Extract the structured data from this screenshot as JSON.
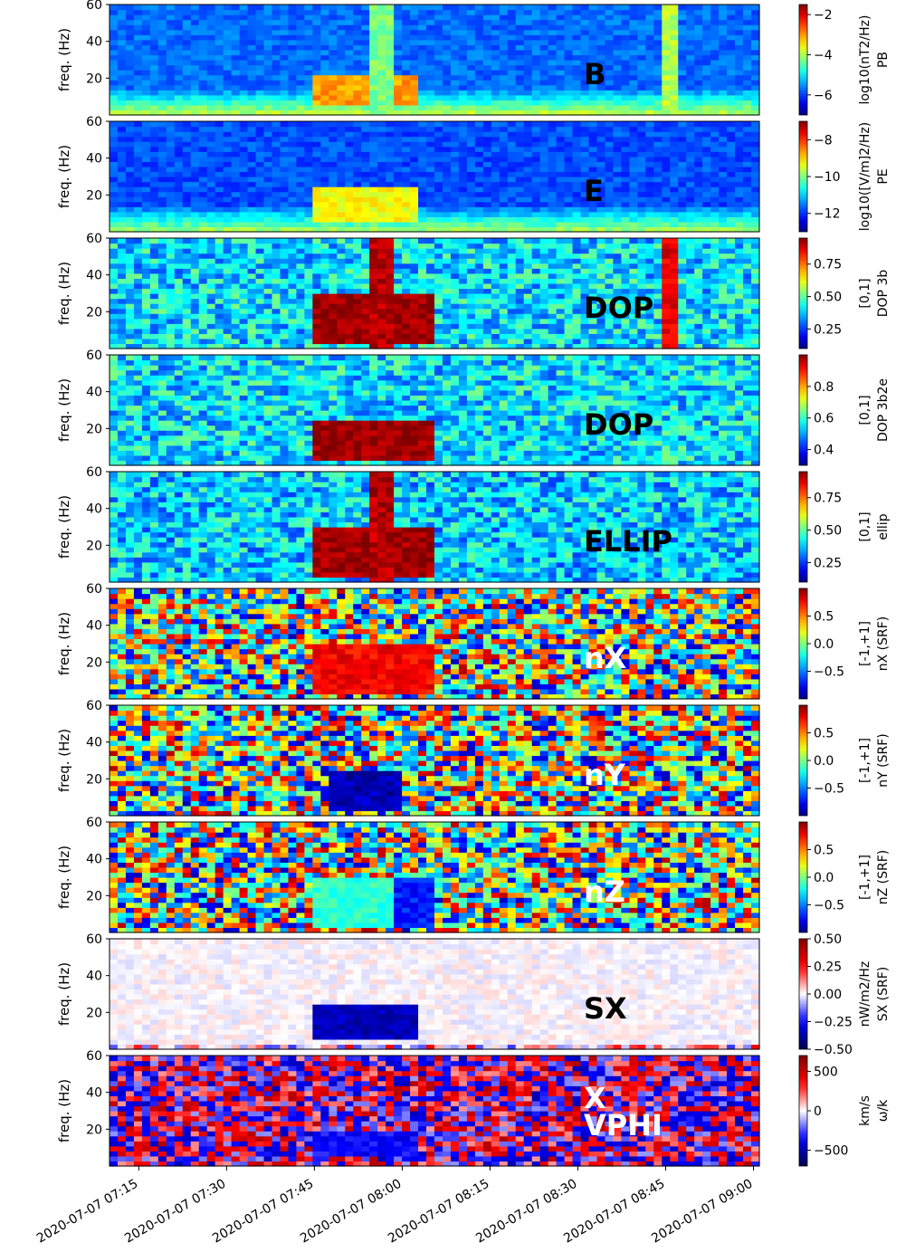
{
  "chart_data": {
    "type": "heatmap",
    "time_axis": {
      "range": [
        "2020-07-07 07:10",
        "2020-07-07 09:01"
      ],
      "ticks": [
        "2020-07-07 07:15",
        "2020-07-07 07:30",
        "2020-07-07 07:45",
        "2020-07-07 08:00",
        "2020-07-07 08:15",
        "2020-07-07 08:30",
        "2020-07-07 08:45",
        "2020-07-07 09:00"
      ]
    },
    "freq_axis": {
      "label": "freq. (Hz)",
      "range": [
        0,
        60
      ],
      "ticks": [
        20,
        40,
        60
      ]
    },
    "panels": [
      {
        "name": "B",
        "label": "B",
        "label_color": "#000000",
        "colormap": "jet",
        "cbar_lines": [
          "log$_{10}$(nT$^2$/Hz)",
          "PB"
        ],
        "cbar_line1": "log10(nT2/Hz)",
        "cbar_line2": "PB",
        "cbar_range": [
          -7,
          -1.5
        ],
        "cbar_ticks": [
          {
            "v": -2,
            "t": "−2"
          },
          {
            "v": -4,
            "t": "−4"
          },
          {
            "v": -6,
            "t": "−6"
          }
        ],
        "background": 0.28,
        "activity": [
          {
            "t0": "07:45",
            "t1": "08:03",
            "f0": 5,
            "f1": 22,
            "value": 0.72
          },
          {
            "t0": "07:54",
            "t1": "07:58",
            "f0": 0,
            "f1": 60,
            "value": 0.5
          },
          {
            "t0": "08:45",
            "t1": "08:47",
            "f0": 0,
            "f1": 60,
            "value": 0.55
          }
        ]
      },
      {
        "name": "E",
        "label": "E",
        "label_color": "#000000",
        "colormap": "jet",
        "cbar_lines": [
          "log$_{10}$([V/m]$^2$/Hz)",
          "PE"
        ],
        "cbar_line1": "log10([V/m]2/Hz)",
        "cbar_line2": "PE",
        "cbar_range": [
          -13,
          -7
        ],
        "cbar_ticks": [
          {
            "v": -8,
            "t": "−8"
          },
          {
            "v": -10,
            "t": "−10"
          },
          {
            "v": -12,
            "t": "−12"
          }
        ],
        "background": 0.25,
        "activity": [
          {
            "t0": "07:45",
            "t1": "08:03",
            "f0": 5,
            "f1": 25,
            "value": 0.62
          }
        ]
      },
      {
        "name": "DOP 3b",
        "label": "DOP",
        "label_color": "#000000",
        "colormap": "jet",
        "cbar_lines": [
          "[0,1]",
          "DOP 3b"
        ],
        "cbar_line1": "[0,1]",
        "cbar_line2": "DOP 3b",
        "cbar_range": [
          0.1,
          0.95
        ],
        "cbar_ticks": [
          {
            "v": 0.75,
            "t": "0.75"
          },
          {
            "v": 0.5,
            "t": "0.50"
          },
          {
            "v": 0.25,
            "t": "0.25"
          }
        ],
        "background": 0.35,
        "activity": [
          {
            "t0": "07:45",
            "t1": "08:05",
            "f0": 3,
            "f1": 30,
            "value": 0.97
          },
          {
            "t0": "07:54",
            "t1": "07:58",
            "f0": 0,
            "f1": 60,
            "value": 0.95
          },
          {
            "t0": "08:45",
            "t1": "08:47",
            "f0": 0,
            "f1": 60,
            "value": 0.9
          }
        ]
      },
      {
        "name": "DOP 3b2e",
        "label": "DOP",
        "label_color": "#000000",
        "colormap": "jet",
        "cbar_lines": [
          "[0,1]",
          "DOP 3b2e"
        ],
        "cbar_line1": "[0,1]",
        "cbar_line2": "DOP 3b2e",
        "cbar_range": [
          0.3,
          1.0
        ],
        "cbar_ticks": [
          {
            "v": 0.8,
            "t": "0.8"
          },
          {
            "v": 0.6,
            "t": "0.6"
          },
          {
            "v": 0.4,
            "t": "0.4"
          }
        ],
        "background": 0.35,
        "activity": [
          {
            "t0": "07:45",
            "t1": "08:05",
            "f0": 3,
            "f1": 25,
            "value": 0.97
          }
        ]
      },
      {
        "name": "ellip",
        "label": "ELLIP",
        "label_color": "#000000",
        "colormap": "jet",
        "cbar_lines": [
          "[0,1]",
          "ellip"
        ],
        "cbar_line1": "[0,1]",
        "cbar_line2": "ellip",
        "cbar_range": [
          0.1,
          0.95
        ],
        "cbar_ticks": [
          {
            "v": 0.75,
            "t": "0.75"
          },
          {
            "v": 0.5,
            "t": "0.50"
          },
          {
            "v": 0.25,
            "t": "0.25"
          }
        ],
        "background": 0.33,
        "activity": [
          {
            "t0": "07:45",
            "t1": "08:05",
            "f0": 3,
            "f1": 30,
            "value": 0.97
          },
          {
            "t0": "07:54",
            "t1": "07:58",
            "f0": 0,
            "f1": 60,
            "value": 0.95
          }
        ]
      },
      {
        "name": "nX (SRF)",
        "label": "nX",
        "label_color": "#ffffff",
        "colormap": "jet",
        "cbar_lines": [
          "[-1,+1]",
          "n$_X$ (SRF)"
        ],
        "cbar_line1": "[-1,+1]",
        "cbar_line2": "nX (SRF)",
        "cbar_range": [
          -1,
          1
        ],
        "cbar_ticks": [
          {
            "v": 0.5,
            "t": "0.5"
          },
          {
            "v": 0,
            "t": "0.0"
          },
          {
            "v": -0.5,
            "t": "−0.5"
          }
        ],
        "background": 0.5,
        "activity": [
          {
            "t0": "07:45",
            "t1": "08:05",
            "f0": 3,
            "f1": 30,
            "value": 0.88
          }
        ]
      },
      {
        "name": "nY (SRF)",
        "label": "nY",
        "label_color": "#ffffff",
        "colormap": "jet",
        "cbar_lines": [
          "[-1,+1]",
          "n$_Y$ (SRF)"
        ],
        "cbar_line1": "[-1,+1]",
        "cbar_line2": "nY (SRF)",
        "cbar_range": [
          -1,
          1
        ],
        "cbar_ticks": [
          {
            "v": 0.5,
            "t": "0.5"
          },
          {
            "v": 0,
            "t": "0.0"
          },
          {
            "v": -0.5,
            "t": "−0.5"
          }
        ],
        "background": 0.5,
        "activity": [
          {
            "t0": "07:47",
            "t1": "08:00",
            "f0": 3,
            "f1": 25,
            "value": 0.05
          }
        ]
      },
      {
        "name": "nZ (SRF)",
        "label": "nZ",
        "label_color": "#ffffff",
        "colormap": "jet",
        "cbar_lines": [
          "[-1,+1]",
          "n$_Z$ (SRF)"
        ],
        "cbar_line1": "[-1,+1]",
        "cbar_line2": "nZ (SRF)",
        "cbar_range": [
          -1,
          1
        ],
        "cbar_ticks": [
          {
            "v": 0.5,
            "t": "0.5"
          },
          {
            "v": 0,
            "t": "0.0"
          },
          {
            "v": -0.5,
            "t": "−0.5"
          }
        ],
        "background": 0.5,
        "activity": [
          {
            "t0": "07:45",
            "t1": "07:58",
            "f0": 3,
            "f1": 30,
            "value": 0.42
          },
          {
            "t0": "07:58",
            "t1": "08:05",
            "f0": 3,
            "f1": 30,
            "value": 0.15
          }
        ]
      },
      {
        "name": "SX (SRF)",
        "label": "SX",
        "label_color": "#000000",
        "colormap": "seismic",
        "cbar_lines": [
          "nW/m$^2$/Hz",
          "S$_X$ (SRF)"
        ],
        "cbar_line1": "nW/m2/Hz",
        "cbar_line2": "SX (SRF)",
        "cbar_range": [
          -0.5,
          0.5
        ],
        "cbar_ticks": [
          {
            "v": 0.5,
            "t": "0.50"
          },
          {
            "v": 0.25,
            "t": "0.25"
          },
          {
            "v": 0,
            "t": "0.00"
          },
          {
            "v": -0.25,
            "t": "−0.25"
          },
          {
            "v": -0.5,
            "t": "−0.50"
          }
        ],
        "background": 0.5,
        "activity": [
          {
            "t0": "07:45",
            "t1": "08:03",
            "f0": 5,
            "f1": 25,
            "value": 0.15
          }
        ]
      },
      {
        "name": "ω/k",
        "label": "X\nVPHI",
        "label_color": "#ffffff",
        "colormap": "seismic",
        "cbar_lines": [
          "km/s",
          "ω/k"
        ],
        "cbar_line1": "km/s",
        "cbar_line2": "ω/k",
        "cbar_range": [
          -700,
          700
        ],
        "cbar_ticks": [
          {
            "v": 500,
            "t": "500"
          },
          {
            "v": 0,
            "t": "0"
          },
          {
            "v": -500,
            "t": "−500"
          }
        ],
        "background": 0.5,
        "activity": [
          {
            "t0": "07:45",
            "t1": "08:03",
            "f0": 5,
            "f1": 20,
            "value": 0.25
          }
        ]
      }
    ]
  }
}
